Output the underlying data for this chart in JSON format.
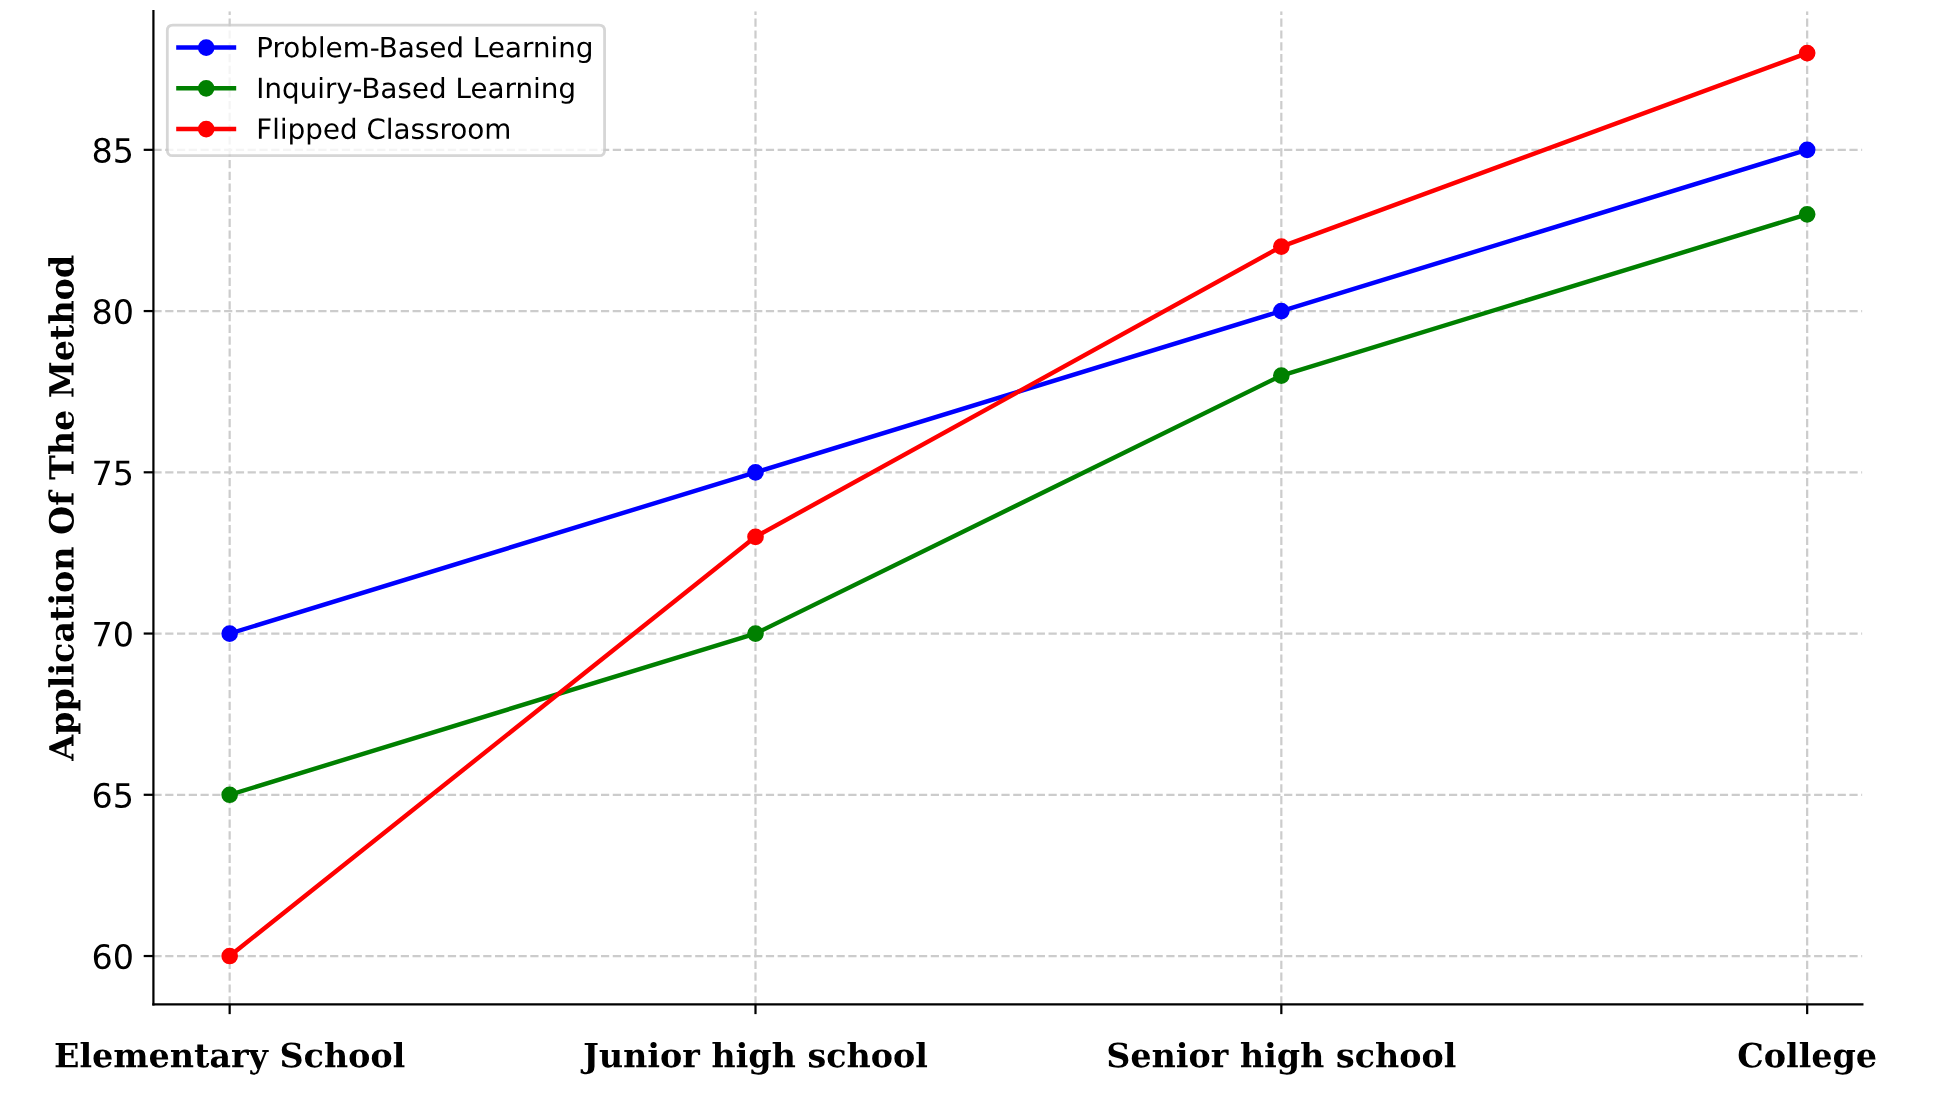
{
  "chart_data": {
    "type": "line",
    "ylabel": "Application Of The Method",
    "categories": [
      "Elementary School",
      "Junior high school",
      "Senior high school",
      "College"
    ],
    "series": [
      {
        "name": "Problem-Based Learning",
        "color": "#0000ff",
        "values": [
          70,
          75,
          80,
          85
        ]
      },
      {
        "name": "Inquiry-Based Learning",
        "color": "#008000",
        "values": [
          65,
          70,
          78,
          83
        ]
      },
      {
        "name": "Flipped Classroom",
        "color": "#ff0000",
        "values": [
          60,
          73,
          82,
          88
        ]
      }
    ],
    "ylim": [
      58.5,
      89.3
    ],
    "yticks": [
      60,
      65,
      70,
      75,
      80,
      85
    ],
    "grid": true,
    "legend": "top left",
    "marker": "circle",
    "line_style": "solid"
  }
}
